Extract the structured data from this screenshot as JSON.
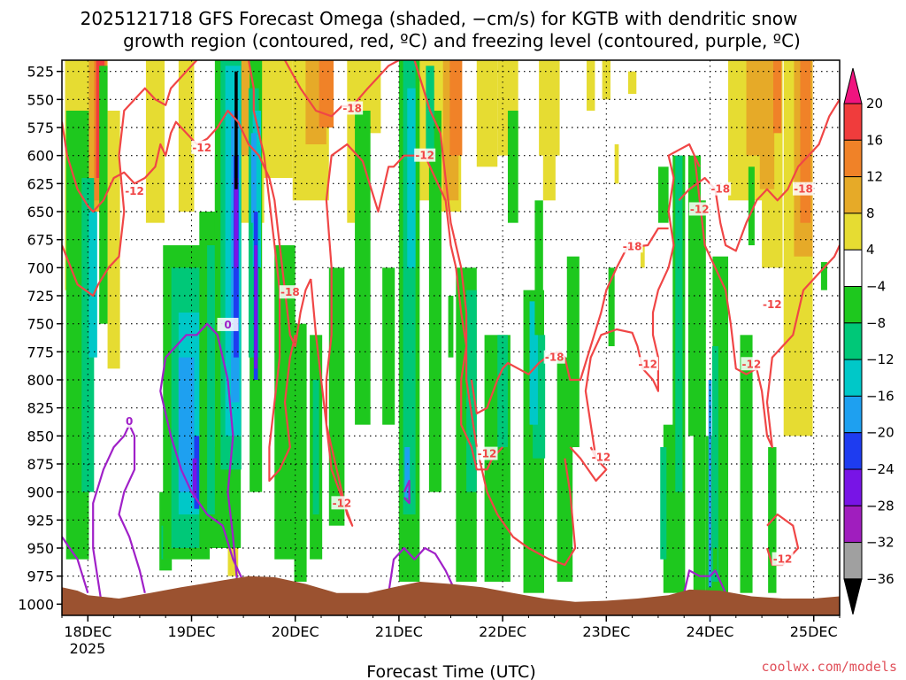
{
  "chart_data": {
    "type": "heatmap",
    "title_line1": "2025121718 GFS Forecast Omega (shaded, −cm/s) for KGTB with dendritic snow",
    "title_line2": "growth region (contoured, red, ºC) and freezing level (contoured, purple, ºC)",
    "xlabel": "Forecast Time (UTC)",
    "ylabel": "",
    "credit": "coolwx.com/models",
    "y_ticks": [
      "525",
      "550",
      "575",
      "600",
      "625",
      "650",
      "675",
      "700",
      "725",
      "750",
      "775",
      "800",
      "825",
      "850",
      "875",
      "900",
      "925",
      "950",
      "975",
      "1000"
    ],
    "y_range_hpa": [
      515,
      1010
    ],
    "x_ticks": [
      {
        "day": 0,
        "label": "18DEC"
      },
      {
        "day": 1,
        "label": "19DEC"
      },
      {
        "day": 2,
        "label": "20DEC"
      },
      {
        "day": 3,
        "label": "21DEC"
      },
      {
        "day": 4,
        "label": "22DEC"
      },
      {
        "day": 5,
        "label": "23DEC"
      },
      {
        "day": 6,
        "label": "24DEC"
      },
      {
        "day": 7,
        "label": "25DEC"
      }
    ],
    "x_year_label": "2025",
    "x_range_days": [
      -0.25,
      7.25
    ],
    "grid": true,
    "colorbar": {
      "levels": [
        "20",
        "16",
        "12",
        "8",
        "4",
        "−4",
        "−8",
        "−12",
        "−16",
        "−20",
        "−24",
        "−28",
        "−32",
        "−36"
      ],
      "colors": [
        "#f0147f",
        "#f03c3c",
        "#f08228",
        "#e6aa28",
        "#e6dc32",
        "#ffffff",
        "#1ec81e",
        "#00c878",
        "#00c8c8",
        "#1ea0f0",
        "#1e3cf0",
        "#7814e6",
        "#a01ebe",
        "#a0a0a0",
        "#000000"
      ]
    },
    "contour_labels_dendritic": [
      {
        "day": 2.55,
        "p": 558,
        "text": "-18"
      },
      {
        "day": 1.1,
        "p": 593,
        "text": "-12"
      },
      {
        "day": 0.45,
        "p": 632,
        "text": "-12"
      },
      {
        "day": 3.25,
        "p": 600,
        "text": "-12"
      },
      {
        "day": 1.95,
        "p": 722,
        "text": "-18"
      },
      {
        "day": 5.25,
        "p": 681,
        "text": "-18"
      },
      {
        "day": 5.9,
        "p": 648,
        "text": "-12"
      },
      {
        "day": 6.1,
        "p": 630,
        "text": "-18"
      },
      {
        "day": 6.9,
        "p": 630,
        "text": "-18"
      },
      {
        "day": 6.6,
        "p": 733,
        "text": "-12"
      },
      {
        "day": 4.5,
        "p": 780,
        "text": "-18"
      },
      {
        "day": 5.4,
        "p": 786,
        "text": "-12"
      },
      {
        "day": 6.4,
        "p": 786,
        "text": "-12"
      },
      {
        "day": 3.85,
        "p": 866,
        "text": "-12"
      },
      {
        "day": 4.95,
        "p": 869,
        "text": "-12"
      },
      {
        "day": 2.45,
        "p": 910,
        "text": "-12"
      },
      {
        "day": 6.7,
        "p": 960,
        "text": "-12"
      }
    ],
    "contour_labels_freezing": [
      {
        "day": 0.4,
        "p": 837,
        "text": "0"
      },
      {
        "day": 1.35,
        "p": 751,
        "text": "0"
      }
    ],
    "terrain_color": "#9b5230",
    "dendritic_color": "#f04646",
    "freezing_color": "#a020c8"
  }
}
